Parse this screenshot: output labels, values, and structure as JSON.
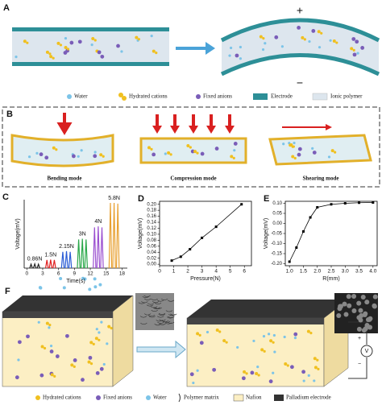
{
  "panel_a": {
    "label": "A",
    "plus": "+",
    "minus": "−",
    "legend": [
      "Water",
      "Hydrated cations",
      "Fixed anions",
      "Electrode",
      "Ionic polymer"
    ]
  },
  "panel_b": {
    "label": "B",
    "modes": [
      "Bending mode",
      "Compression mode",
      "Shearing mode"
    ]
  },
  "chart_data": [
    {
      "panel": "C",
      "type": "spike",
      "xlabel": "Time(s)",
      "ylabel": "Voltage(mV)",
      "xlim": [
        -0.5,
        19
      ],
      "ylim": [
        0,
        0.21
      ],
      "xticks": [
        0,
        3,
        6,
        9,
        12,
        15,
        18
      ],
      "series": [
        {
          "name": "0.86N",
          "color": "#222222",
          "x": [
            0.8,
            1.5,
            2.2
          ],
          "values": [
            0.012,
            0.013,
            0.012
          ]
        },
        {
          "name": "1.5N",
          "color": "#e02020",
          "x": [
            3.8,
            4.5,
            5.2
          ],
          "values": [
            0.025,
            0.026,
            0.025
          ]
        },
        {
          "name": "2.15N",
          "color": "#2a5cd6",
          "x": [
            6.8,
            7.5,
            8.2
          ],
          "values": [
            0.05,
            0.052,
            0.05
          ]
        },
        {
          "name": "3N",
          "color": "#2aa84a",
          "x": [
            9.8,
            10.5,
            11.2
          ],
          "values": [
            0.088,
            0.09,
            0.088
          ]
        },
        {
          "name": "4N",
          "color": "#9b4fd0",
          "x": [
            12.8,
            13.5,
            14.2
          ],
          "values": [
            0.125,
            0.128,
            0.125
          ]
        },
        {
          "name": "5.8N",
          "color": "#e8a030",
          "x": [
            15.8,
            16.5,
            17.2
          ],
          "values": [
            0.2,
            0.2,
            0.198
          ]
        }
      ]
    },
    {
      "panel": "D",
      "type": "line",
      "xlabel": "Pressure(N)",
      "ylabel": "Voltage(mV)",
      "xlim": [
        0,
        6.5
      ],
      "ylim": [
        -0.005,
        0.21
      ],
      "xticks": [
        0,
        1,
        2,
        3,
        4,
        5,
        6
      ],
      "yticks": [
        {
          "value": 0,
          "label": "0.00"
        },
        {
          "value": 0.02,
          "label": "0.02"
        },
        {
          "value": 0.04,
          "label": "0.04"
        },
        {
          "value": 0.06,
          "label": "0.06"
        },
        {
          "value": 0.08,
          "label": "0.08"
        },
        {
          "value": 0.1,
          "label": "0.10"
        },
        {
          "value": 0.12,
          "label": "0.12"
        },
        {
          "value": 0.14,
          "label": "0.14"
        },
        {
          "value": 0.16,
          "label": "0.16"
        },
        {
          "value": 0.18,
          "label": "0.18"
        },
        {
          "value": 0.2,
          "label": "0.20"
        }
      ],
      "x": [
        0.86,
        1.5,
        2.15,
        3,
        4,
        5.8
      ],
      "values": [
        0.012,
        0.025,
        0.05,
        0.088,
        0.125,
        0.2
      ],
      "color": "#000000"
    },
    {
      "panel": "E",
      "type": "line",
      "xlabel": "R(mm)",
      "ylabel": "Voltage(mV)",
      "xlim": [
        0.85,
        4.15
      ],
      "ylim": [
        -0.21,
        0.11
      ],
      "xticks": [
        {
          "value": 1,
          "label": "1.0"
        },
        1.5,
        {
          "value": 2,
          "label": "2.0"
        },
        2.5,
        {
          "value": 3,
          "label": "3.0"
        },
        3.5,
        {
          "value": 4,
          "label": "4.0"
        }
      ],
      "yticks": [
        {
          "value": -0.2,
          "label": "-0.20"
        },
        {
          "value": -0.15,
          "label": "-0.15"
        },
        {
          "value": -0.1,
          "label": "-0.10"
        },
        {
          "value": -0.05,
          "label": "-0.05"
        },
        {
          "value": 0,
          "label": "0.00"
        },
        {
          "value": 0.05,
          "label": "0.05"
        },
        {
          "value": 0.1,
          "label": "0.10"
        }
      ],
      "x": [
        1,
        1.25,
        1.5,
        1.75,
        2,
        2.5,
        3,
        3.5,
        4
      ],
      "values": [
        -0.19,
        -0.12,
        -0.04,
        0.03,
        0.08,
        0.095,
        0.1,
        0.103,
        0.104
      ],
      "color": "#000000"
    }
  ],
  "panel_f": {
    "label": "F",
    "meter": "V",
    "plus": "+",
    "minus": "−",
    "legend": [
      "Hydrated cations",
      "Fixed anions",
      "Water",
      "Polymer matrix",
      "Nafion",
      "Palladium electrode"
    ]
  }
}
